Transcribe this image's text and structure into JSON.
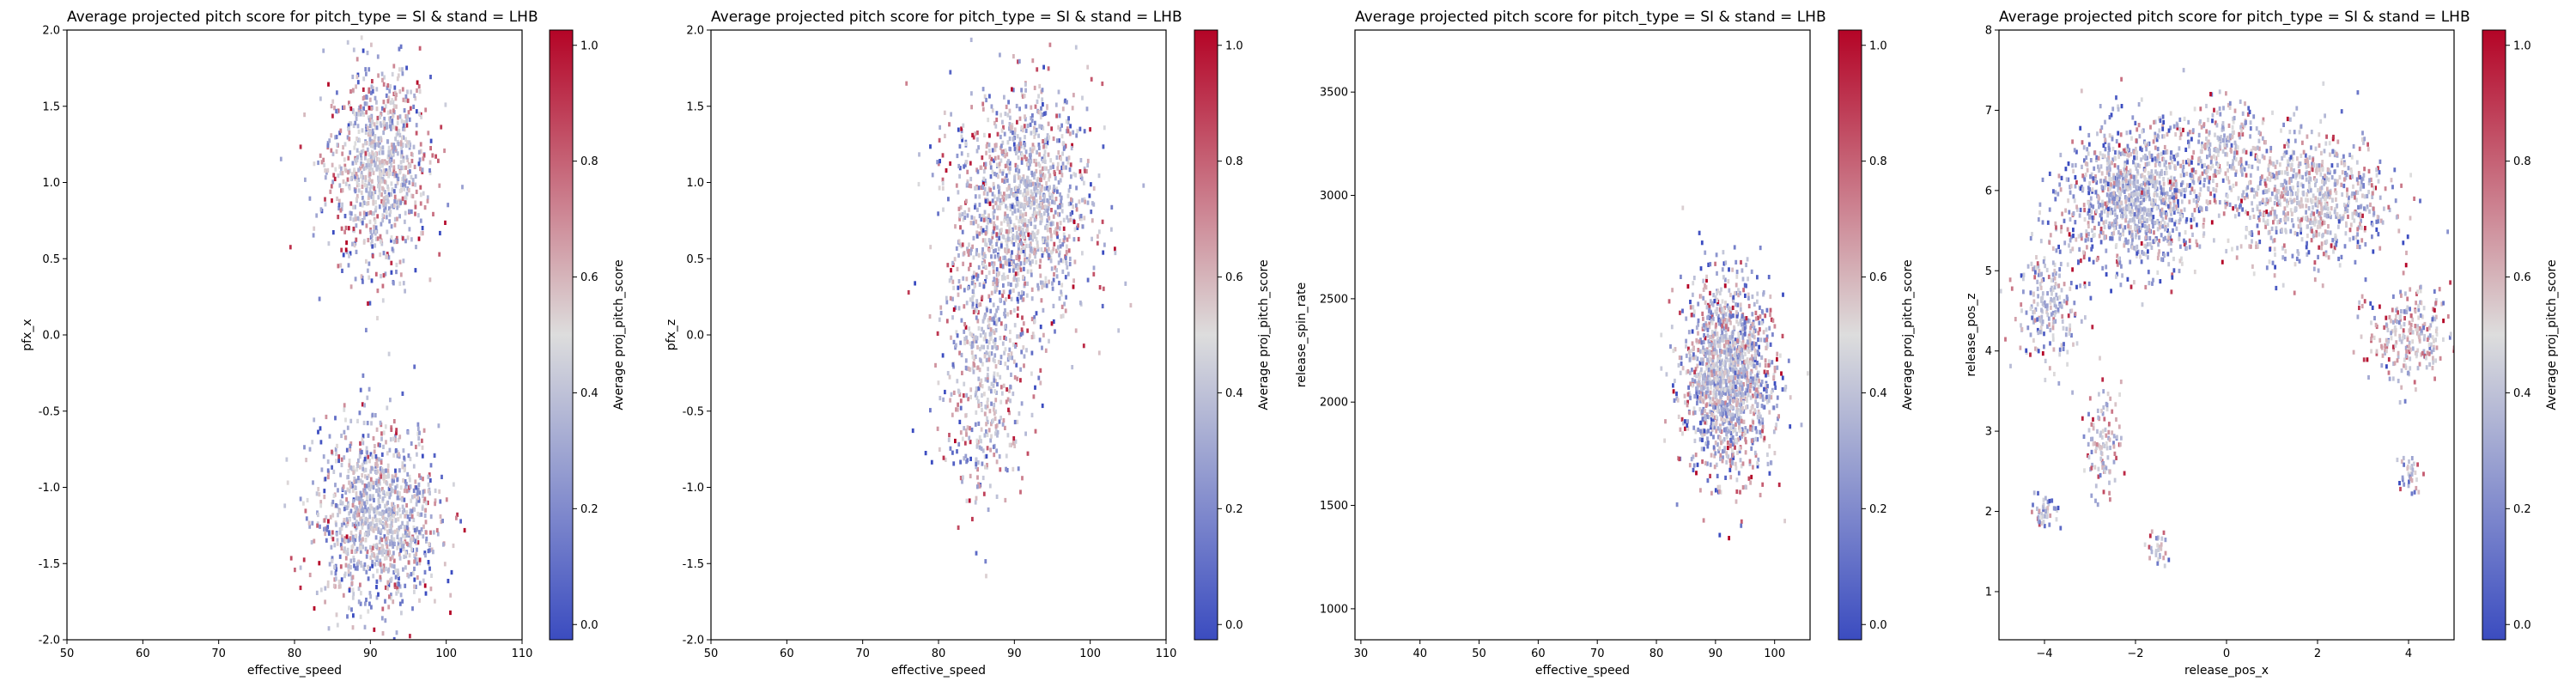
{
  "figure": {
    "colormap": "coolwarm",
    "cmap_low": "#3b4cc0",
    "cmap_mid": "#dddddd",
    "cmap_high": "#b40426"
  },
  "chart_data": [
    {
      "type": "heatmap",
      "title": "Average projected pitch score for pitch_type = SI & stand = LHB",
      "xlabel": "effective_speed",
      "ylabel": "pfx_x",
      "xlim": [
        50,
        110
      ],
      "ylim": [
        -2.0,
        2.0
      ],
      "xticks": [
        50,
        60,
        70,
        80,
        90,
        100,
        110
      ],
      "xticklabels": [
        "50",
        "60",
        "70",
        "80",
        "90",
        "100",
        "110"
      ],
      "yticks": [
        -2.0,
        -1.5,
        -1.0,
        -0.5,
        0.0,
        0.5,
        1.0,
        1.5,
        2.0
      ],
      "yticklabels": [
        "-2.0",
        "-1.5",
        "-1.0",
        "-0.5",
        "0.0",
        "0.5",
        "1.0",
        "1.5",
        "2.0"
      ],
      "colorbar": {
        "label": "Average proj_pitch_score",
        "range": [
          0,
          1
        ],
        "ticks": [
          0.0,
          0.2,
          0.4,
          0.6,
          0.8,
          1.0
        ],
        "ticklabels": [
          "0.0",
          "0.2",
          "0.4",
          "0.6",
          "0.8",
          "1.0"
        ]
      },
      "clusters": [
        {
          "cx": 91,
          "cy": 1.1,
          "sx": 3.4,
          "sy": 0.34,
          "n": 900,
          "mean": 0.45
        },
        {
          "cx": 91,
          "cy": -1.2,
          "sx": 4.0,
          "sy": 0.3,
          "n": 1100,
          "mean": 0.42
        }
      ]
    },
    {
      "type": "heatmap",
      "title": "Average projected pitch score for pitch_type = SI & stand = LHB",
      "xlabel": "effective_speed",
      "ylabel": "pfx_z",
      "xlim": [
        50,
        110
      ],
      "ylim": [
        -2.0,
        2.0
      ],
      "xticks": [
        50,
        60,
        70,
        80,
        90,
        100,
        110
      ],
      "xticklabels": [
        "50",
        "60",
        "70",
        "80",
        "90",
        "100",
        "110"
      ],
      "yticks": [
        -2.0,
        -1.5,
        -1.0,
        -0.5,
        0.0,
        0.5,
        1.0,
        1.5,
        2.0
      ],
      "yticklabels": [
        "-2.0",
        "-1.5",
        "-1.0",
        "-0.5",
        "0.0",
        "0.5",
        "1.0",
        "1.5",
        "2.0"
      ],
      "colorbar": {
        "label": "Average proj_pitch_score",
        "range": [
          0,
          1
        ],
        "ticks": [
          0.0,
          0.2,
          0.4,
          0.6,
          0.8,
          1.0
        ],
        "ticklabels": [
          "0.0",
          "0.2",
          "0.4",
          "0.6",
          "0.8",
          "1.0"
        ]
      },
      "clusters": [
        {
          "cx": 91,
          "cy": 0.85,
          "sx": 4.5,
          "sy": 0.38,
          "n": 1300,
          "mean": 0.44
        },
        {
          "cx": 86,
          "cy": -0.2,
          "sx": 3.0,
          "sy": 0.45,
          "n": 500,
          "mean": 0.45
        }
      ]
    },
    {
      "type": "heatmap",
      "title": "Average projected pitch score for pitch_type = SI & stand = LHB",
      "xlabel": "effective_speed",
      "ylabel": "release_spin_rate",
      "xlim": [
        29,
        106
      ],
      "ylim": [
        850,
        3800
      ],
      "xticks": [
        30,
        40,
        50,
        60,
        70,
        80,
        90,
        100
      ],
      "xticklabels": [
        "30",
        "40",
        "50",
        "60",
        "70",
        "80",
        "90",
        "100"
      ],
      "yticks": [
        1000,
        1500,
        2000,
        2500,
        3000,
        3500
      ],
      "yticklabels": [
        "1000",
        "1500",
        "2000",
        "2500",
        "3000",
        "3500"
      ],
      "colorbar": {
        "label": "Average proj_pitch_score",
        "range": [
          0,
          1
        ],
        "ticks": [
          0.0,
          0.2,
          0.4,
          0.6,
          0.8,
          1.0
        ],
        "ticklabels": [
          "0.0",
          "0.2",
          "0.4",
          "0.6",
          "0.8",
          "1.0"
        ]
      },
      "clusters": [
        {
          "cx": 92,
          "cy": 2120,
          "sx": 3.8,
          "sy": 230,
          "n": 1500,
          "mean": 0.43
        }
      ]
    },
    {
      "type": "heatmap",
      "title": "Average projected pitch score for pitch_type = SI & stand = LHB",
      "xlabel": "release_pos_x",
      "ylabel": "release_pos_z",
      "xlim": [
        -5.0,
        5.0
      ],
      "ylim": [
        0.4,
        8.0
      ],
      "xticks": [
        -4,
        -2,
        0,
        2,
        4
      ],
      "xticklabels": [
        "−4",
        "−2",
        "0",
        "2",
        "4"
      ],
      "yticks": [
        1,
        2,
        3,
        4,
        5,
        6,
        7,
        8
      ],
      "yticklabels": [
        "1",
        "2",
        "3",
        "4",
        "5",
        "6",
        "7",
        "8"
      ],
      "colorbar": {
        "label": "Average proj_pitch_score",
        "range": [
          0,
          1
        ],
        "ticks": [
          0.0,
          0.2,
          0.4,
          0.6,
          0.8,
          1.0
        ],
        "ticklabels": [
          "0.0",
          "0.2",
          "0.4",
          "0.6",
          "0.8",
          "1.0"
        ]
      },
      "clusters": [
        {
          "cx": -2.0,
          "cy": 5.9,
          "sx": 0.75,
          "sy": 0.45,
          "n": 1100,
          "mean": 0.38
        },
        {
          "cx": 1.8,
          "cy": 5.9,
          "sx": 0.9,
          "sy": 0.4,
          "n": 800,
          "mean": 0.45
        },
        {
          "cx": -3.9,
          "cy": 4.6,
          "sx": 0.35,
          "sy": 0.4,
          "n": 220,
          "mean": 0.4
        },
        {
          "cx": 4.0,
          "cy": 4.2,
          "sx": 0.45,
          "sy": 0.3,
          "n": 250,
          "mean": 0.52
        },
        {
          "cx": -2.7,
          "cy": 2.9,
          "sx": 0.2,
          "sy": 0.3,
          "n": 110,
          "mean": 0.5
        },
        {
          "cx": -4.0,
          "cy": 2.0,
          "sx": 0.15,
          "sy": 0.12,
          "n": 50,
          "mean": 0.45
        },
        {
          "cx": -1.5,
          "cy": 1.55,
          "sx": 0.12,
          "sy": 0.12,
          "n": 30,
          "mean": 0.4
        },
        {
          "cx": 4.0,
          "cy": 2.5,
          "sx": 0.14,
          "sy": 0.12,
          "n": 35,
          "mean": 0.4
        },
        {
          "cx": -0.2,
          "cy": 6.5,
          "sx": 0.5,
          "sy": 0.35,
          "n": 250,
          "mean": 0.45
        }
      ]
    }
  ]
}
